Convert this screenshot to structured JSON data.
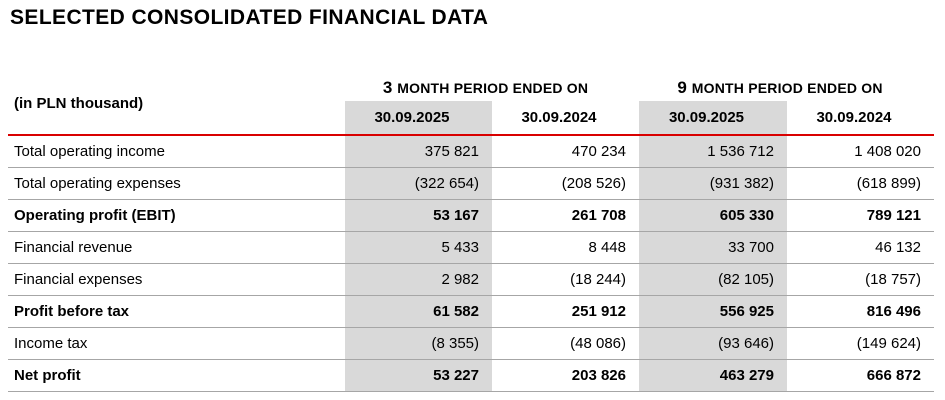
{
  "title": "SELECTED CONSOLIDATED FINANCIAL DATA",
  "unit_note": "(in PLN thousand)",
  "colors": {
    "accent_red": "#d90000",
    "shaded_column": "#d9d9d9",
    "row_divider": "#a6a6a6",
    "text": "#000000"
  },
  "column_groups": [
    {
      "number": "3",
      "label": "MONTH PERIOD ENDED ON"
    },
    {
      "number": "9",
      "label": "MONTH PERIOD ENDED ON"
    }
  ],
  "column_headers": [
    "30.09.2025",
    "30.09.2024",
    "30.09.2025",
    "30.09.2024"
  ],
  "rows": [
    {
      "label": "Total operating income",
      "values": [
        "375 821",
        "470 234",
        "1 536 712",
        "1 408 020"
      ]
    },
    {
      "label": "Total operating expenses",
      "values": [
        "(322 654)",
        "(208 526)",
        "(931 382)",
        "(618 899)"
      ]
    },
    {
      "label": "Operating profit (EBIT)",
      "values": [
        "53 167",
        "261 708",
        "605 330",
        "789 121"
      ]
    },
    {
      "label": "Financial revenue",
      "values": [
        "5 433",
        "8 448",
        "33 700",
        "46 132"
      ]
    },
    {
      "label": "Financial expenses",
      "values": [
        "2 982",
        "(18 244)",
        "(82 105)",
        "(18 757)"
      ]
    },
    {
      "label": "Profit before tax",
      "values": [
        "61 582",
        "251 912",
        "556 925",
        "816 496"
      ]
    },
    {
      "label": "Income tax",
      "values": [
        "(8 355)",
        "(48 086)",
        "(93 646)",
        "(149 624)"
      ]
    },
    {
      "label": "Net profit",
      "values": [
        "53 227",
        "203 826",
        "463 279",
        "666 872"
      ]
    }
  ]
}
